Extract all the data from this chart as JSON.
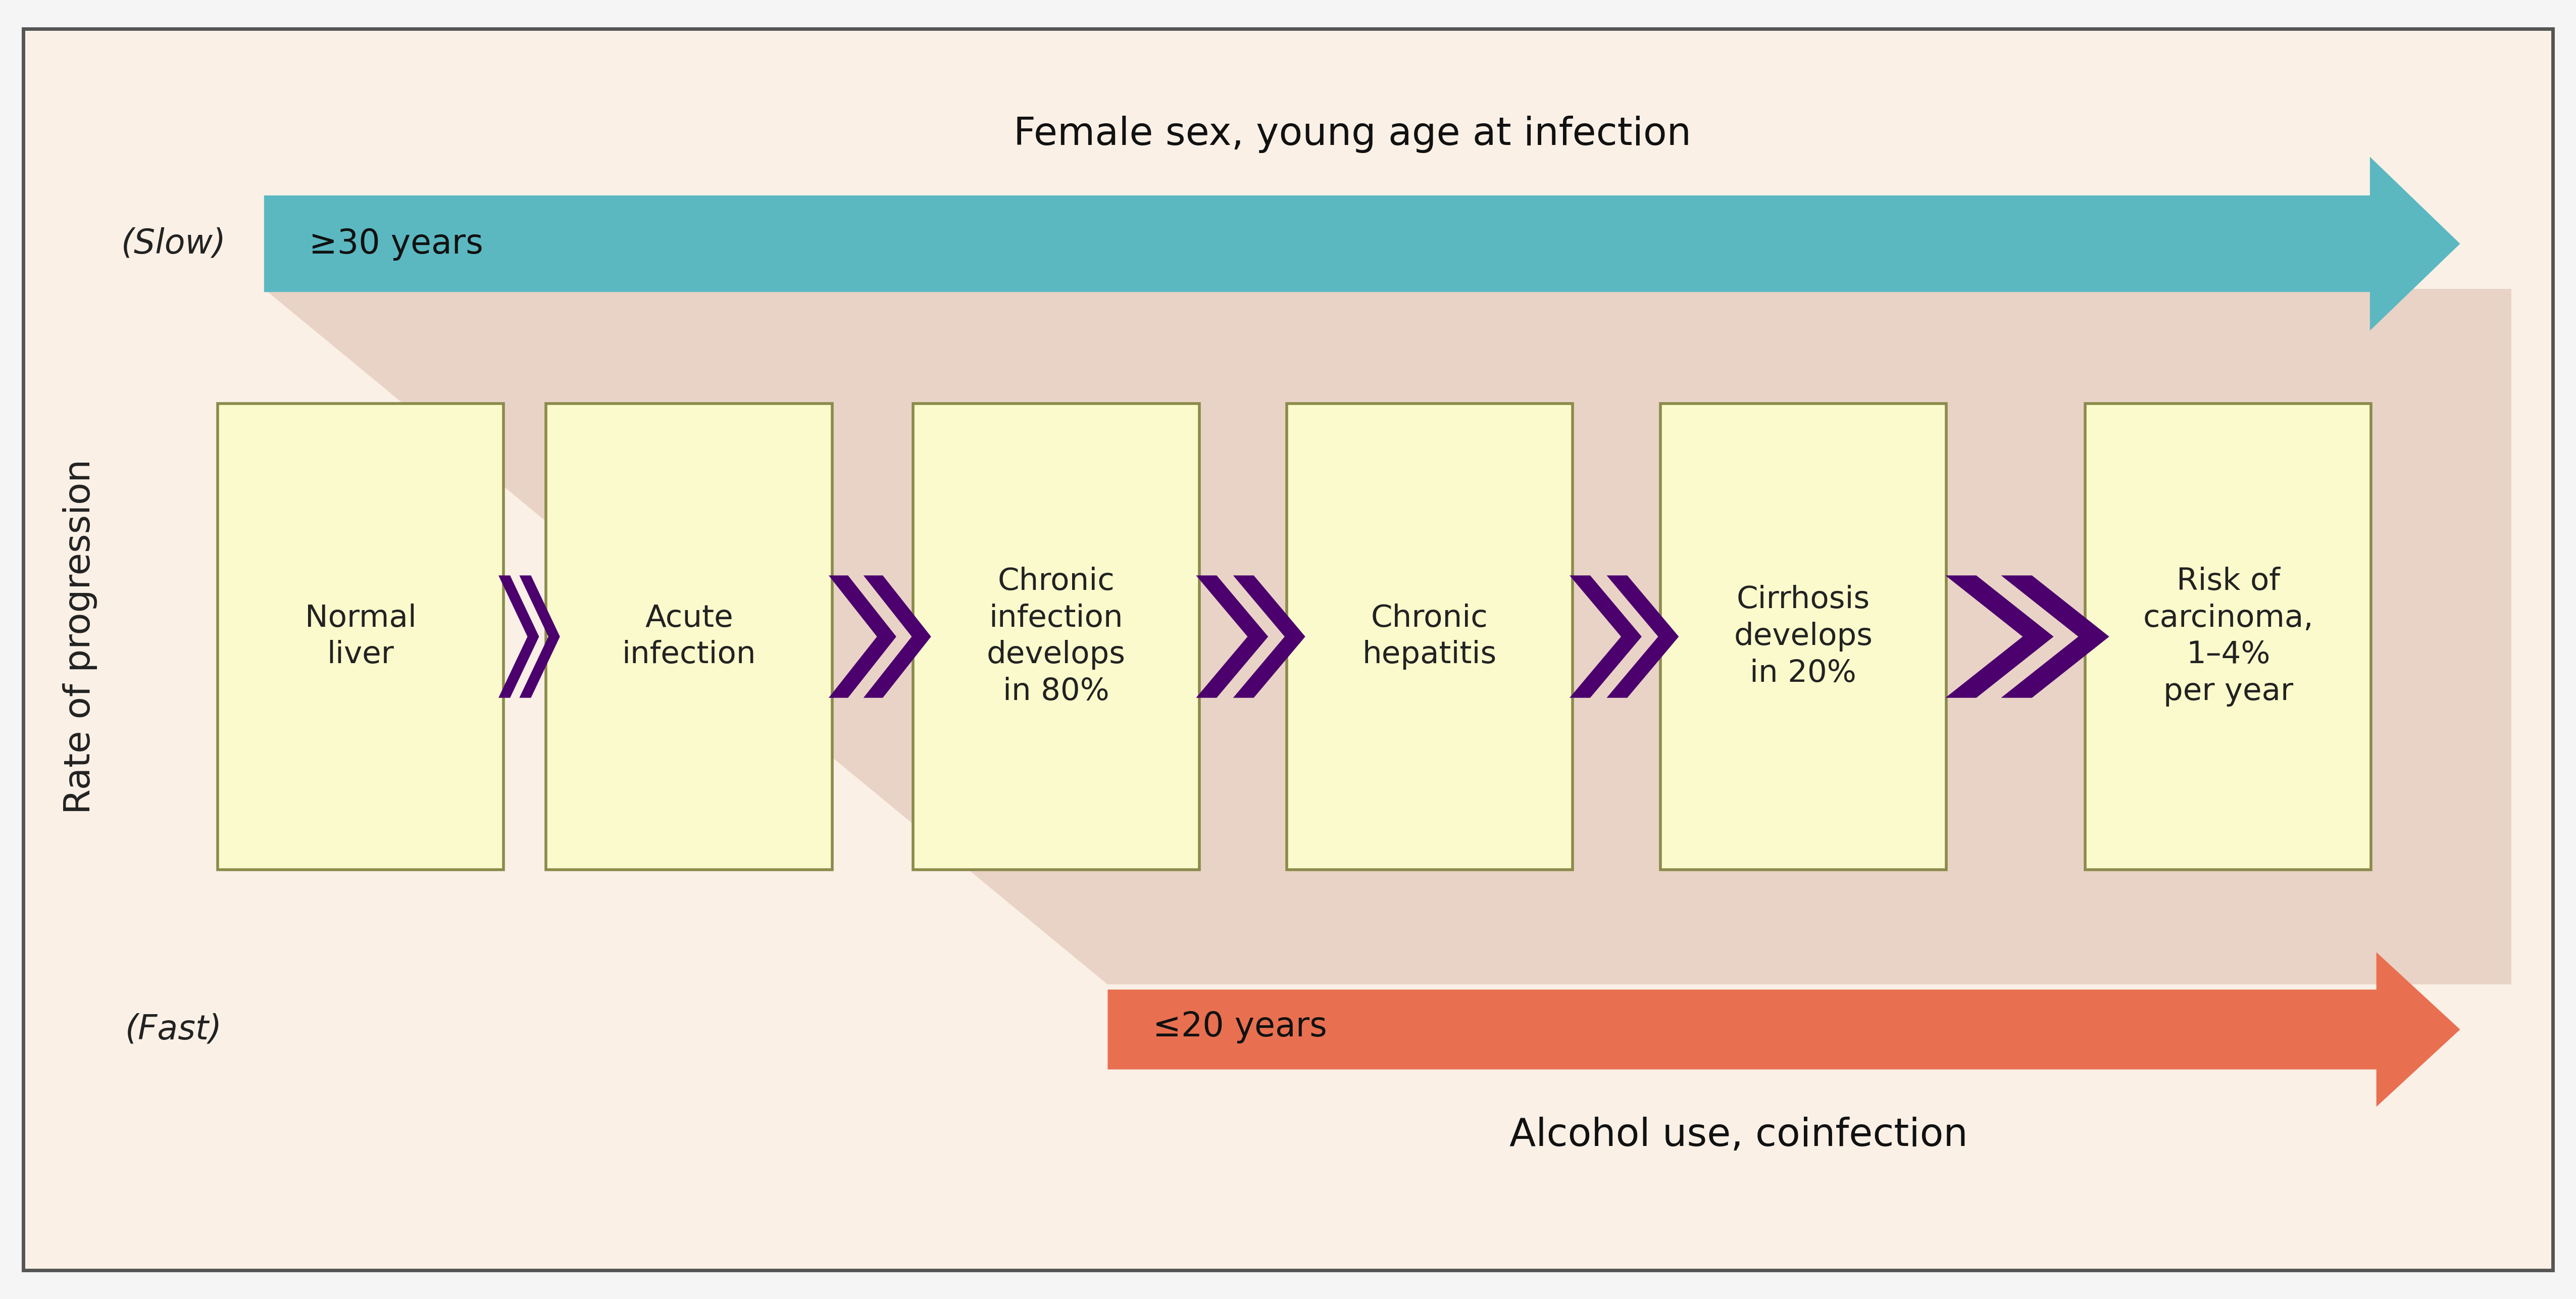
{
  "bg_color": "#FAF0E6",
  "outer_bg": "#F5F5F5",
  "border_color": "#555555",
  "box_fill": "#FAFACC",
  "box_edge": "#8B8B4B",
  "arrow_purple": "#4B006E",
  "arrow_teal": "#5BB8C1",
  "arrow_salmon": "#E87050",
  "funnel_fill": "#D9B8A8",
  "funnel_alpha": 0.5,
  "ylabel": "Rate of progression",
  "slow_label": "(Slow)",
  "fast_label": "(Fast)",
  "teal_arrow_label": "Female sex, young age at infection",
  "teal_arrow_sublabel": "≥30 years",
  "salmon_arrow_label": "Alcohol use, coinfection",
  "salmon_arrow_sublabel": "≤20 years",
  "boxes": [
    "Normal\nliver",
    "Acute\ninfection",
    "Chronic\ninfection\ndevelops\nin 80%",
    "Chronic\nhepatitis",
    "Cirrhosis\ndevelops\nin 20%",
    "Risk of\ncarcinoma,\n1–4%\nper year"
  ]
}
